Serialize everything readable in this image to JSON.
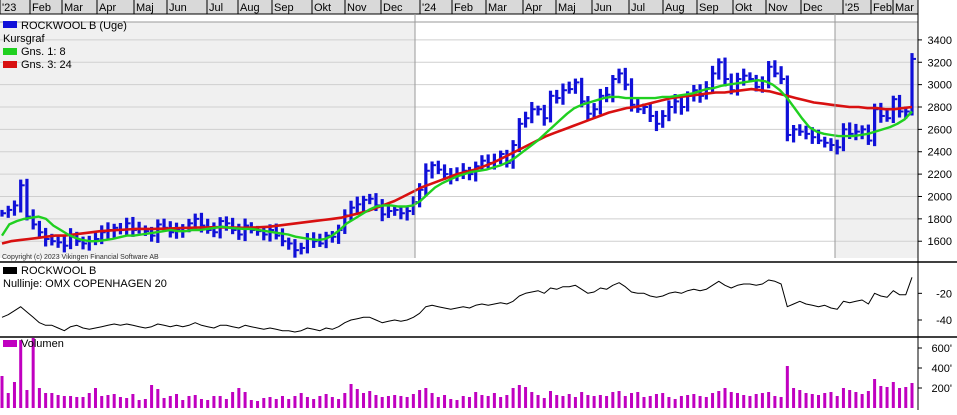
{
  "x_axis": {
    "labels": [
      "'23",
      "Feb",
      "Mar",
      "Apr",
      "Maj",
      "Jun",
      "Jul",
      "Aug",
      "Sep",
      "Okt",
      "Nov",
      "Dec",
      "'24",
      "Feb",
      "Mar",
      "Apr",
      "Maj",
      "Jun",
      "Jul",
      "Aug",
      "Sep",
      "Okt",
      "Nov",
      "Dec",
      "'25",
      "Feb",
      "Mar"
    ]
  },
  "price_panel": {
    "legend": [
      {
        "label": "ROCKWOOL B (Uge)",
        "color": "#1010d8"
      },
      {
        "label": "Kursgraf",
        "color": null
      },
      {
        "label": "Gns. 1: 8",
        "color": "#20d020"
      },
      {
        "label": "Gns. 3: 24",
        "color": "#d81010"
      }
    ],
    "copyright": "Copyright (c) 2023 Vikingen Financial Software AB",
    "y_ticks": [
      "3400",
      "3200",
      "3000",
      "2800",
      "2600",
      "2400",
      "2200",
      "2000",
      "1800",
      "1600"
    ]
  },
  "relative_panel": {
    "legend": [
      {
        "label": "ROCKWOOL B",
        "color": "#000000"
      },
      {
        "label": "Nullinje: OMX COPENHAGEN 20",
        "color": null
      }
    ],
    "y_ticks": [
      "-20",
      "-40"
    ]
  },
  "volume_panel": {
    "legend": [
      {
        "label": "Volumen",
        "color": "#c000c0"
      }
    ],
    "y_ticks": [
      "600'",
      "400'",
      "200'"
    ]
  },
  "chart_data": [
    {
      "type": "ohlc",
      "title": "ROCKWOOL B (Uge)",
      "x_range": [
        "2023-01-02",
        "2025-03-24"
      ],
      "ylim": [
        1450,
        3560
      ],
      "price_close": [
        1850,
        1880,
        1920,
        2100,
        1820,
        1750,
        1680,
        1620,
        1600,
        1590,
        1560,
        1650,
        1600,
        1580,
        1600,
        1620,
        1680,
        1700,
        1720,
        1700,
        1760,
        1700,
        1710,
        1690,
        1650,
        1750,
        1720,
        1680,
        1700,
        1720,
        1760,
        1800,
        1740,
        1700,
        1680,
        1780,
        1760,
        1700,
        1660,
        1740,
        1700,
        1690,
        1660,
        1700,
        1650,
        1600,
        1580,
        1520,
        1540,
        1620,
        1600,
        1580,
        1650,
        1640,
        1700,
        1830,
        1900,
        1930,
        1970,
        1980,
        1920,
        1840,
        1870,
        1880,
        1850,
        1870,
        1950,
        2060,
        2230,
        2280,
        2240,
        2200,
        2170,
        2200,
        2230,
        2200,
        2270,
        2320,
        2300,
        2320,
        2380,
        2300,
        2460,
        2650,
        2700,
        2780,
        2780,
        2700,
        2900,
        2880,
        2950,
        2960,
        3020,
        2850,
        2740,
        2780,
        2900,
        2910,
        3050,
        3100,
        3000,
        2820,
        2780,
        2800,
        2720,
        2650,
        2720,
        2800,
        2850,
        2800,
        2900,
        2950,
        2900,
        2970,
        3100,
        3200,
        3050,
        2950,
        3050,
        3080,
        3050,
        2980,
        3030,
        3160,
        3100,
        3050,
        2550,
        2600,
        2580,
        2560,
        2530,
        2500,
        2480,
        2460,
        2440,
        2600,
        2560,
        2580,
        2600,
        2500,
        2780,
        2720,
        2700,
        2870,
        2760,
        2760,
        3230
      ],
      "sma_8": [
        1650,
        1750,
        1780,
        1800,
        1810,
        1820,
        1800,
        1740,
        1700,
        1660,
        1630,
        1610,
        1600,
        1600,
        1610,
        1620,
        1635,
        1650,
        1650,
        1660,
        1670,
        1680,
        1690,
        1700,
        1690,
        1690,
        1700,
        1700,
        1710,
        1720,
        1730,
        1720,
        1715,
        1710,
        1710,
        1700,
        1690,
        1680,
        1670,
        1660,
        1640,
        1630,
        1620,
        1610,
        1620,
        1650,
        1700,
        1760,
        1800,
        1840,
        1880,
        1910,
        1920,
        1920,
        1910,
        1910,
        1920,
        1960,
        2020,
        2080,
        2120,
        2150,
        2180,
        2200,
        2220,
        2230,
        2240,
        2260,
        2280,
        2310,
        2350,
        2400,
        2450,
        2500,
        2560,
        2620,
        2680,
        2740,
        2790,
        2820,
        2840,
        2860,
        2880,
        2890,
        2890,
        2880,
        2880,
        2880,
        2880,
        2880,
        2890,
        2890,
        2900,
        2910,
        2920,
        2940,
        2960,
        2970,
        2990,
        3000,
        3010,
        3020,
        3030,
        3040,
        3030,
        3000,
        2950,
        2880,
        2790,
        2700,
        2620,
        2580,
        2560,
        2550,
        2540,
        2540,
        2540,
        2550,
        2560,
        2580,
        2600,
        2620,
        2650,
        2690,
        2760
      ],
      "sma_24": [
        1580,
        1600,
        1610,
        1620,
        1630,
        1640,
        1650,
        1650,
        1660,
        1670,
        1680,
        1690,
        1695,
        1700,
        1705,
        1710,
        1710,
        1710,
        1712,
        1715,
        1718,
        1720,
        1722,
        1724,
        1725,
        1724,
        1722,
        1720,
        1722,
        1725,
        1730,
        1740,
        1750,
        1760,
        1770,
        1780,
        1790,
        1800,
        1810,
        1830,
        1850,
        1870,
        1900,
        1930,
        1960,
        2000,
        2040,
        2080,
        2110,
        2140,
        2170,
        2200,
        2220,
        2240,
        2270,
        2300,
        2340,
        2380,
        2420,
        2460,
        2500,
        2540,
        2570,
        2600,
        2630,
        2660,
        2690,
        2720,
        2750,
        2770,
        2790,
        2800,
        2820,
        2840,
        2860,
        2880,
        2890,
        2900,
        2910,
        2920,
        2930,
        2930,
        2940,
        2950,
        2960,
        2950,
        2940,
        2920,
        2900,
        2880,
        2860,
        2840,
        2830,
        2820,
        2810,
        2800,
        2800,
        2790,
        2790,
        2780,
        2780,
        2790,
        2800
      ],
      "series": [
        {
          "name": "ROCKWOOL B (Uge)",
          "values": "price_close"
        },
        {
          "name": "Gns. 1: 8",
          "values": "sma_8"
        },
        {
          "name": "Gns. 3: 24",
          "values": "sma_24"
        }
      ]
    },
    {
      "type": "line",
      "title": "Nullinje: OMX COPENHAGEN 20",
      "ylim": [
        -52,
        2
      ],
      "series": [
        {
          "name": "ROCKWOOL B",
          "values": [
            -38,
            -36,
            -33,
            -30,
            -34,
            -38,
            -42,
            -44,
            -44,
            -46,
            -48,
            -45,
            -44,
            -46,
            -47,
            -46,
            -45,
            -44,
            -43,
            -44,
            -43,
            -44,
            -45,
            -46,
            -45,
            -43,
            -44,
            -45,
            -44,
            -45,
            -44,
            -42,
            -44,
            -45,
            -46,
            -44,
            -44,
            -45,
            -46,
            -44,
            -45,
            -46,
            -47,
            -46,
            -47,
            -48,
            -48,
            -49,
            -48,
            -46,
            -47,
            -48,
            -46,
            -47,
            -45,
            -42,
            -40,
            -39,
            -38,
            -38,
            -40,
            -42,
            -41,
            -40,
            -41,
            -40,
            -38,
            -35,
            -30,
            -29,
            -30,
            -31,
            -32,
            -31,
            -30,
            -31,
            -29,
            -28,
            -29,
            -28,
            -27,
            -28,
            -26,
            -22,
            -20,
            -19,
            -18,
            -20,
            -16,
            -17,
            -15,
            -15,
            -14,
            -17,
            -20,
            -19,
            -16,
            -17,
            -14,
            -12,
            -15,
            -19,
            -20,
            -20,
            -22,
            -23,
            -22,
            -20,
            -19,
            -20,
            -18,
            -17,
            -18,
            -17,
            -14,
            -11,
            -14,
            -16,
            -14,
            -13,
            -13,
            -14,
            -13,
            -10,
            -11,
            -13,
            -30,
            -28,
            -26,
            -28,
            -29,
            -30,
            -29,
            -31,
            -32,
            -26,
            -27,
            -26,
            -25,
            -28,
            -20,
            -22,
            -23,
            -18,
            -21,
            -21,
            -8
          ]
        }
      ]
    },
    {
      "type": "bar",
      "title": "Volumen",
      "ylim": [
        0,
        700
      ],
      "series": [
        {
          "name": "Volumen",
          "values": [
            320,
            150,
            260,
            680,
            180,
            700,
            200,
            150,
            150,
            130,
            120,
            120,
            110,
            110,
            150,
            200,
            120,
            130,
            140,
            110,
            100,
            140,
            80,
            90,
            230,
            190,
            100,
            120,
            140,
            80,
            120,
            130,
            90,
            80,
            120,
            120,
            90,
            160,
            200,
            160,
            80,
            70,
            100,
            110,
            90,
            120,
            90,
            120,
            150,
            110,
            90,
            120,
            140,
            110,
            90,
            150,
            240,
            190,
            150,
            170,
            130,
            110,
            120,
            130,
            120,
            110,
            140,
            180,
            200,
            150,
            110,
            130,
            90,
            80,
            120,
            110,
            160,
            130,
            120,
            150,
            110,
            130,
            200,
            230,
            210,
            160,
            130,
            100,
            170,
            130,
            120,
            140,
            110,
            160,
            130,
            120,
            130,
            120,
            160,
            170,
            120,
            150,
            160,
            110,
            120,
            140,
            150,
            110,
            90,
            120,
            130,
            140,
            120,
            110,
            150,
            170,
            200,
            160,
            150,
            130,
            120,
            140,
            150,
            160,
            120,
            110,
            420,
            200,
            180,
            150,
            140,
            130,
            150,
            160,
            120,
            200,
            180,
            160,
            140,
            170,
            290,
            220,
            210,
            260,
            200,
            210,
            250
          ]
        }
      ]
    }
  ]
}
